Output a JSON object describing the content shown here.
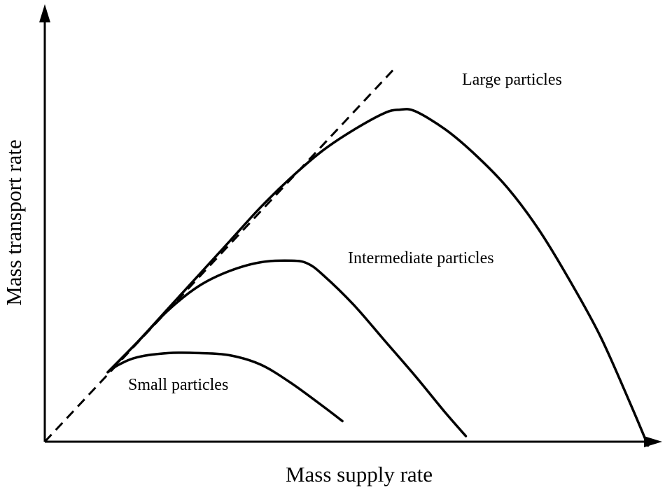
{
  "chart_data": {
    "type": "line",
    "xlabel": "Mass supply rate",
    "ylabel": "Mass transport rate",
    "xlim": [
      0,
      100
    ],
    "ylim": [
      0,
      100
    ],
    "grid": false,
    "legend": "none",
    "colors": {
      "line": "#000000",
      "background": "#ffffff"
    },
    "reference_line": {
      "style": "dashed",
      "x": [
        0,
        57
      ],
      "y": [
        0,
        100
      ]
    },
    "series": [
      {
        "name": "Large particles",
        "x": [
          10.2,
          15,
          20,
          25,
          30,
          35,
          40,
          45,
          50,
          55,
          57.5,
          60,
          65,
          70,
          75,
          80,
          85,
          90,
          95,
          97.7
        ],
        "y": [
          18.5,
          26.5,
          35.5,
          44.5,
          53.5,
          62.5,
          70.5,
          77.5,
          83,
          87.5,
          88.4,
          88,
          83,
          76,
          67.5,
          56.5,
          43,
          28,
          9.5,
          -1
        ]
      },
      {
        "name": "Intermediate particles",
        "x": [
          10.2,
          15,
          20,
          25,
          30,
          35,
          40,
          42.5,
          45,
          50,
          55,
          60,
          65,
          68.2
        ],
        "y": [
          18.5,
          26.5,
          35,
          41.5,
          45.5,
          47.8,
          48.2,
          47.5,
          44.5,
          36.5,
          27,
          17.5,
          7.5,
          1.5
        ]
      },
      {
        "name": "Small particles",
        "x": [
          10.2,
          12,
          15,
          20,
          25,
          30,
          35,
          40,
          45,
          48.2
        ],
        "y": [
          18.5,
          20.5,
          22.5,
          23.6,
          23.6,
          23,
          20.5,
          15.5,
          9.5,
          5.5
        ]
      }
    ]
  }
}
